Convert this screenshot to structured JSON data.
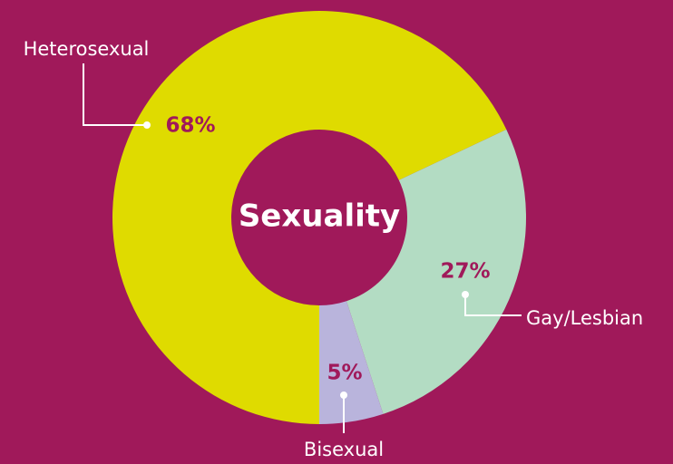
{
  "chart_data": {
    "type": "donut",
    "title": "Sexuality",
    "categories": [
      "Heterosexual",
      "Gay/Lesbian",
      "Bisexual"
    ],
    "values": [
      68,
      27,
      5
    ],
    "value_labels": [
      "68%",
      "27%",
      "5%"
    ],
    "colors": [
      "#dfdb00",
      "#b3dcc3",
      "#b9b4dc"
    ]
  }
}
